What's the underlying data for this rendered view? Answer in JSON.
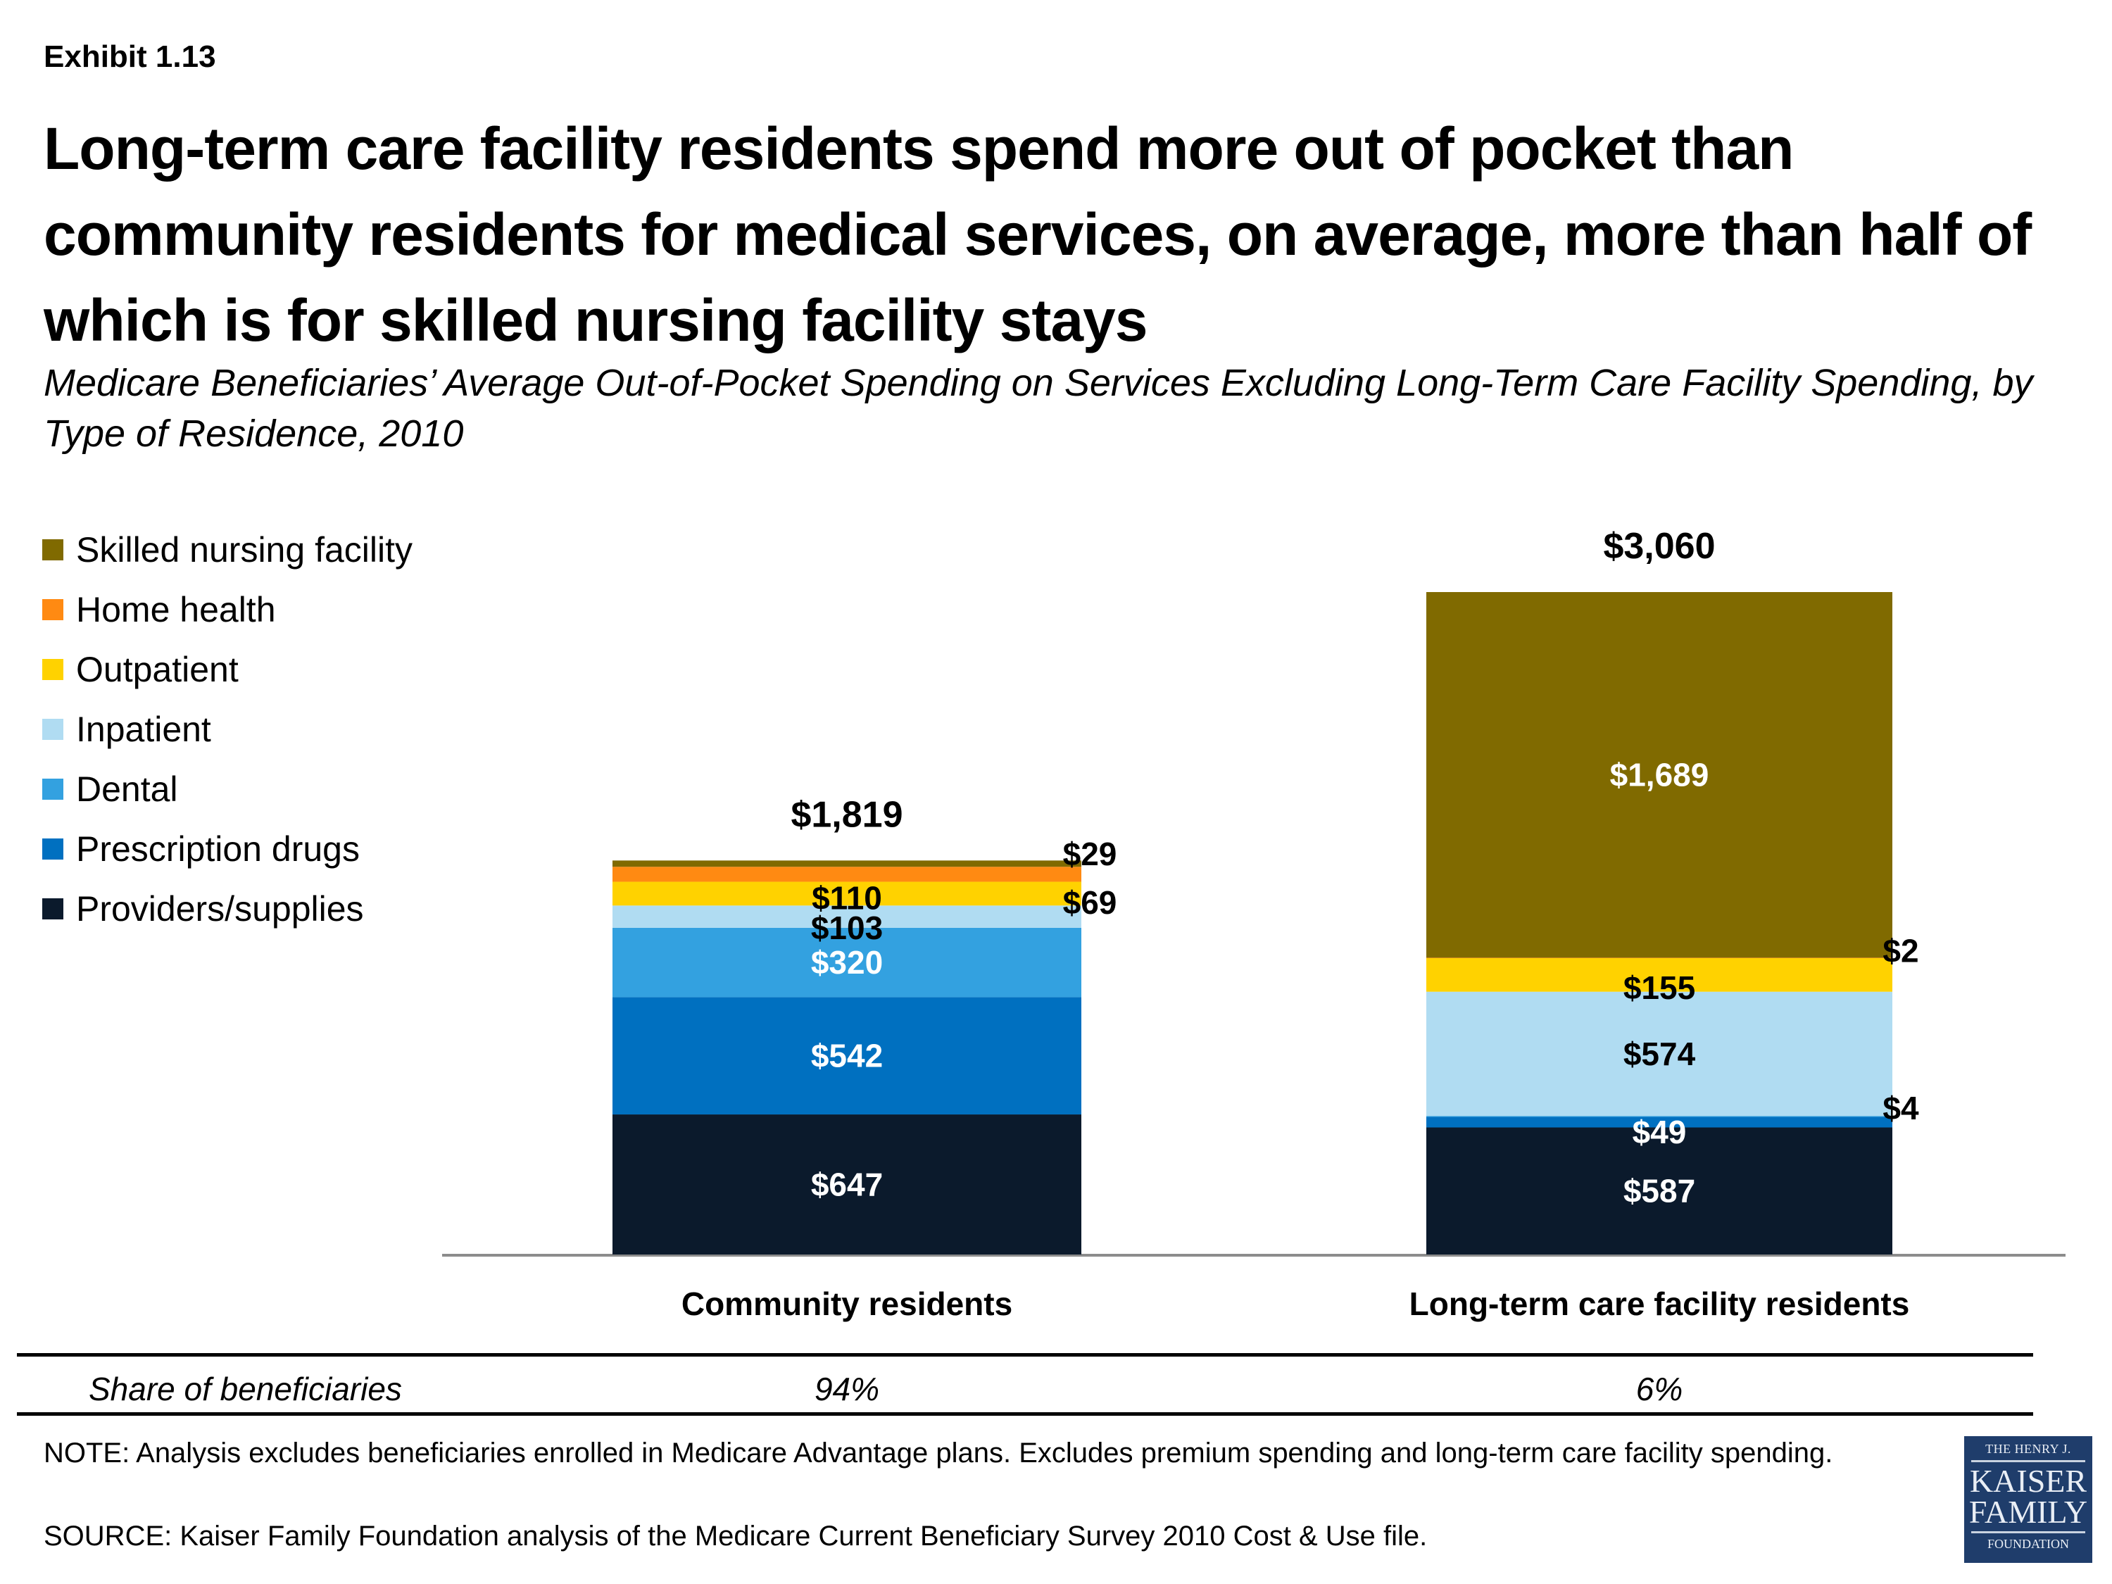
{
  "header": {
    "exhibit": "Exhibit 1.13",
    "title": "Long-term care facility residents spend more out of pocket than community residents for medical services, on average, more than half of which is for skilled nursing facility stays",
    "subtitle": "Medicare Beneficiaries’ Average Out-of-Pocket Spending on Services Excluding Long-Term Care Facility Spending, by Type of Residence, 2010"
  },
  "chart_data": {
    "type": "bar",
    "stacked": true,
    "title": "Medicare Beneficiaries’ Average Out-of-Pocket Spending on Services Excluding Long-Term Care Facility Spending, by Type of Residence, 2010",
    "xlabel": "",
    "ylabel": "",
    "categories": [
      "Community residents",
      "Long-term care facility residents"
    ],
    "totals": [
      1819,
      3060
    ],
    "total_labels": [
      "$1,819",
      "$3,060"
    ],
    "legend_position": "left",
    "grid": false,
    "series": [
      {
        "name": "Providers/supplies",
        "color": "#0b1a2c",
        "values": [
          647,
          587
        ],
        "labels": [
          "$647",
          "$587"
        ],
        "label_color": "#ffffff"
      },
      {
        "name": "Prescription drugs",
        "color": "#0070c0",
        "values": [
          542,
          49
        ],
        "labels": [
          "$542",
          "$49"
        ],
        "label_color": "#ffffff"
      },
      {
        "name": "Dental",
        "color": "#33a1e0",
        "values": [
          320,
          4
        ],
        "labels": [
          "$320",
          "$4"
        ],
        "label_color": "#ffffff"
      },
      {
        "name": "Inpatient",
        "color": "#b0dcf2",
        "values": [
          103,
          574
        ],
        "labels": [
          "$103",
          "$574"
        ],
        "label_color": "#000000"
      },
      {
        "name": "Outpatient",
        "color": "#ffd200",
        "values": [
          110,
          155
        ],
        "labels": [
          "$110",
          "$155"
        ],
        "label_color": "#000000"
      },
      {
        "name": "Home health",
        "color": "#ff8a12",
        "values": [
          69,
          2
        ],
        "labels": [
          "$69",
          "$2"
        ],
        "label_color": "#000000"
      },
      {
        "name": "Skilled nursing facility",
        "color": "#806a00",
        "values": [
          29,
          1689
        ],
        "labels": [
          "$29",
          "$1,689"
        ],
        "label_color": "#ffffff"
      }
    ],
    "legend_order": [
      "Skilled nursing facility",
      "Home health",
      "Outpatient",
      "Inpatient",
      "Dental",
      "Prescription drugs",
      "Providers/supplies"
    ],
    "ylim": [
      0,
      3060
    ]
  },
  "share_row": {
    "label": "Share of beneficiaries",
    "values": [
      "94%",
      "6%"
    ]
  },
  "footer": {
    "note": "NOTE: Analysis excludes beneficiaries enrolled in Medicare Advantage plans. Excludes  premium spending and long-term care facility spending.",
    "source": "SOURCE: Kaiser Family Foundation analysis of the Medicare Current Beneficiary Survey 2010 Cost & Use file."
  },
  "logo": {
    "line1": "THE HENRY J.",
    "line2": "KAISER",
    "line3": "FAMILY",
    "line4": "FOUNDATION",
    "color": "#1f3d6b"
  }
}
